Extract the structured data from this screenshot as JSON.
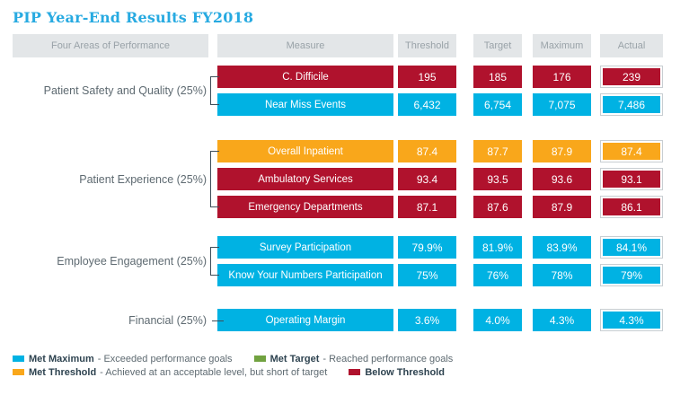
{
  "title": "PIP Year-End Results FY2018",
  "header": {
    "col_area": "Four Areas of Performance",
    "col_measure": "Measure",
    "col_threshold": "Threshold",
    "col_target": "Target",
    "col_maximum": "Maximum",
    "col_actual": "Actual"
  },
  "colors": {
    "met_maximum_cyan": "#00B2E3",
    "met_target_green": "#71A240",
    "met_threshold_orange": "#F9A71B",
    "below_threshold_red": "#B0122D",
    "title_cyan": "#27AAE1",
    "header_gray": "#E3E6E8"
  },
  "groups": [
    {
      "label": "Patient Safety and Quality (25%)",
      "rows": [
        {
          "measure": "C. Difficile",
          "status": "red",
          "threshold": "195",
          "target": "185",
          "maximum": "176",
          "actual": "239"
        },
        {
          "measure": "Near Miss Events",
          "status": "cyan",
          "threshold": "6,432",
          "target": "6,754",
          "maximum": "7,075",
          "actual": "7,486"
        }
      ]
    },
    {
      "label": "Patient Experience (25%)",
      "rows": [
        {
          "measure": "Overall Inpatient",
          "status": "orange",
          "threshold": "87.4",
          "target": "87.7",
          "maximum": "87.9",
          "actual": "87.4"
        },
        {
          "measure": "Ambulatory Services",
          "status": "red",
          "threshold": "93.4",
          "target": "93.5",
          "maximum": "93.6",
          "actual": "93.1"
        },
        {
          "measure": "Emergency Departments",
          "status": "red",
          "threshold": "87.1",
          "target": "87.6",
          "maximum": "87.9",
          "actual": "86.1"
        }
      ]
    },
    {
      "label": "Employee Engagement (25%)",
      "rows": [
        {
          "measure": "Survey Participation",
          "status": "cyan",
          "threshold": "79.9%",
          "target": "81.9%",
          "maximum": "83.9%",
          "actual": "84.1%"
        },
        {
          "measure": "Know Your Numbers Participation",
          "status": "cyan",
          "threshold": "75%",
          "target": "76%",
          "maximum": "78%",
          "actual": "79%"
        }
      ]
    },
    {
      "label": "Financial (25%)",
      "rows": [
        {
          "measure": "Operating Margin",
          "status": "cyan",
          "threshold": "3.6%",
          "target": "4.0%",
          "maximum": "4.3%",
          "actual": "4.3%"
        }
      ]
    }
  ],
  "legend": [
    {
      "swatch": "cyan",
      "term": "Met Maximum",
      "description": "- Exceeded performance goals"
    },
    {
      "swatch": "green",
      "term": "Met Target",
      "description": "- Reached performance goals"
    },
    {
      "swatch": "orange",
      "term": "Met Threshold",
      "description": "- Achieved at an acceptable level, but short of target"
    },
    {
      "swatch": "red",
      "term": "Below Threshold",
      "description": ""
    }
  ],
  "chart_data": {
    "type": "table",
    "title": "PIP Year-End Results FY2018",
    "columns": [
      "Four Areas of Performance",
      "Measure",
      "Threshold",
      "Target",
      "Maximum",
      "Actual"
    ],
    "status_legend": {
      "cyan": "Met Maximum",
      "green": "Met Target",
      "orange": "Met Threshold",
      "red": "Below Threshold"
    },
    "rows": [
      {
        "area": "Patient Safety and Quality (25%)",
        "measure": "C. Difficile",
        "threshold": 195,
        "target": 185,
        "maximum": 176,
        "actual": 239,
        "status": "Below Threshold"
      },
      {
        "area": "Patient Safety and Quality (25%)",
        "measure": "Near Miss Events",
        "threshold": 6432,
        "target": 6754,
        "maximum": 7075,
        "actual": 7486,
        "status": "Met Maximum"
      },
      {
        "area": "Patient Experience (25%)",
        "measure": "Overall Inpatient",
        "threshold": 87.4,
        "target": 87.7,
        "maximum": 87.9,
        "actual": 87.4,
        "status": "Met Threshold"
      },
      {
        "area": "Patient Experience (25%)",
        "measure": "Ambulatory Services",
        "threshold": 93.4,
        "target": 93.5,
        "maximum": 93.6,
        "actual": 93.1,
        "status": "Below Threshold"
      },
      {
        "area": "Patient Experience (25%)",
        "measure": "Emergency Departments",
        "threshold": 87.1,
        "target": 87.6,
        "maximum": 87.9,
        "actual": 86.1,
        "status": "Below Threshold"
      },
      {
        "area": "Employee Engagement (25%)",
        "measure": "Survey Participation",
        "threshold": 79.9,
        "target": 81.9,
        "maximum": 83.9,
        "actual": 84.1,
        "status": "Met Maximum",
        "unit": "%"
      },
      {
        "area": "Employee Engagement (25%)",
        "measure": "Know Your Numbers Participation",
        "threshold": 75,
        "target": 76,
        "maximum": 78,
        "actual": 79,
        "status": "Met Maximum",
        "unit": "%"
      },
      {
        "area": "Financial (25%)",
        "measure": "Operating Margin",
        "threshold": 3.6,
        "target": 4.0,
        "maximum": 4.3,
        "actual": 4.3,
        "status": "Met Maximum",
        "unit": "%"
      }
    ]
  }
}
